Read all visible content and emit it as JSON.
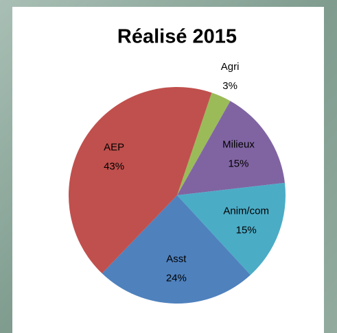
{
  "chart_data": {
    "type": "pie",
    "title": "Réalisé 2015",
    "categories": [
      "Agri",
      "Milieux",
      "Anim/com",
      "Asst",
      "AEP"
    ],
    "values": [
      3,
      15,
      15,
      24,
      43
    ],
    "value_labels": [
      "3%",
      "15%",
      "15%",
      "24%",
      "43%"
    ],
    "colors": [
      "#9bbb59",
      "#8064a2",
      "#4bacc6",
      "#4f81bd",
      "#c0504d"
    ]
  }
}
